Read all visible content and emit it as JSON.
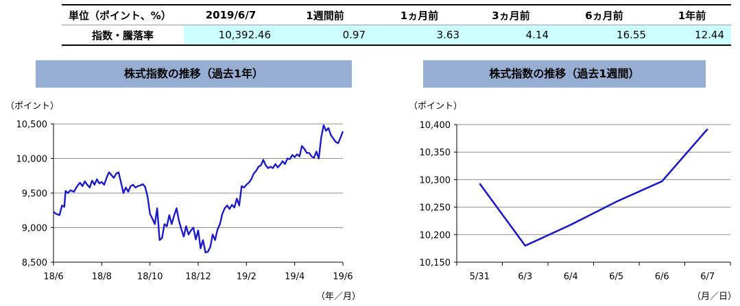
{
  "table": {
    "headers": [
      "単位（ポイント、%）",
      "2019/6/7",
      "1週間前",
      "1ヵ月前",
      "3ヵ月前",
      "6ヵ月前",
      "1年前"
    ],
    "row_label": "指数・騰落率",
    "values": [
      "10,392.46",
      "0.97",
      "3.63",
      "4.14",
      "16.55",
      "12.44"
    ]
  },
  "chart_data": [
    {
      "type": "line",
      "title": "株式指数の推移（過去1年）",
      "ylabel": "（ポイント）",
      "xlabel": "（年／月）",
      "ylim": [
        8500,
        10500
      ],
      "yticks": [
        "10,500",
        "10,000",
        "9,500",
        "9,000",
        "8,500"
      ],
      "xticks": [
        "18/6",
        "18/8",
        "18/10",
        "18/12",
        "19/2",
        "19/4",
        "19/6"
      ],
      "xrange": [
        0,
        12
      ],
      "color": "#1a1acc",
      "series": [
        {
          "x": [
            0,
            0.1,
            0.25,
            0.35,
            0.45,
            0.5,
            0.6,
            0.7,
            0.85,
            1,
            1.1,
            1.2,
            1.3,
            1.4,
            1.5,
            1.6,
            1.7,
            1.8,
            1.9,
            2,
            2.1,
            2.2,
            2.3,
            2.4,
            2.5,
            2.6,
            2.7,
            2.8,
            2.9,
            3,
            3.1,
            3.2,
            3.3,
            3.4,
            3.5,
            3.6,
            3.7,
            3.8,
            3.9,
            4,
            4.1,
            4.2,
            4.3,
            4.4,
            4.5,
            4.6,
            4.7,
            4.8,
            4.9,
            5,
            5.1,
            5.2,
            5.3,
            5.4,
            5.5,
            5.6,
            5.7,
            5.8,
            5.9,
            6,
            6.1,
            6.2,
            6.3,
            6.4,
            6.5,
            6.6,
            6.7,
            6.8,
            6.9,
            7,
            7.1,
            7.2,
            7.3,
            7.4,
            7.5,
            7.6,
            7.7,
            7.8,
            7.9,
            8,
            8.1,
            8.2,
            8.3,
            8.4,
            8.5,
            8.6,
            8.7,
            8.8,
            8.9,
            9,
            9.1,
            9.2,
            9.3,
            9.4,
            9.5,
            9.6,
            9.7,
            9.8,
            9.9,
            10,
            10.1,
            10.2,
            10.3,
            10.4,
            10.5,
            10.6,
            10.7,
            10.8,
            10.9,
            11,
            11.1,
            11.2,
            11.3,
            11.4,
            11.5,
            11.6,
            11.7,
            11.8,
            11.9,
            12
          ],
          "y": [
            9230,
            9200,
            9180,
            9320,
            9300,
            9530,
            9500,
            9540,
            9520,
            9610,
            9650,
            9600,
            9670,
            9620,
            9580,
            9680,
            9620,
            9700,
            9640,
            9660,
            9620,
            9720,
            9800,
            9760,
            9720,
            9780,
            9800,
            9650,
            9500,
            9580,
            9520,
            9600,
            9620,
            9580,
            9600,
            9610,
            9630,
            9590,
            9450,
            9200,
            9130,
            9050,
            9280,
            8820,
            8850,
            9050,
            9020,
            9180,
            9050,
            9170,
            9280,
            9100,
            8980,
            8870,
            9020,
            8900,
            8960,
            9000,
            8830,
            8960,
            8700,
            8820,
            8640,
            8650,
            8720,
            8900,
            8820,
            8970,
            9050,
            9200,
            9280,
            9320,
            9270,
            9330,
            9290,
            9420,
            9320,
            9600,
            9580,
            9620,
            9650,
            9700,
            9780,
            9820,
            9880,
            9900,
            9980,
            9900,
            9860,
            9880,
            9860,
            9920,
            9870,
            9910,
            9960,
            9920,
            10000,
            9990,
            10050,
            10020,
            10060,
            10030,
            10180,
            10140,
            10080,
            10080,
            10030,
            10010,
            10100,
            10000,
            10300,
            10480,
            10400,
            10440,
            10340,
            10290,
            10240,
            10220,
            10300,
            10392
          ]
        }
      ]
    },
    {
      "type": "line",
      "title": "株式指数の推移（過去1週間）",
      "ylabel": "（ポイント）",
      "xlabel": "（月／日）",
      "ylim": [
        10150,
        10400
      ],
      "yticks": [
        "10,400",
        "10,350",
        "10,300",
        "10,250",
        "10,200",
        "10,150"
      ],
      "categories": [
        "5/31",
        "6/3",
        "6/4",
        "6/5",
        "6/6",
        "6/7"
      ],
      "color": "#1a1acc",
      "series": [
        {
          "values": [
            10293,
            10180,
            10218,
            10260,
            10297,
            10392
          ]
        }
      ]
    }
  ]
}
